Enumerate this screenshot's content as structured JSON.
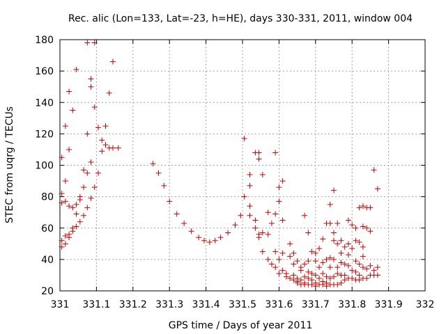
{
  "chart_data": {
    "type": "scatter",
    "title": "Rec. alic (Lon=133, Lat=-23, h=HE), days 330-331, 2011, window 004",
    "xlabel": "GPS time / Days of year 2011",
    "ylabel": "STEC from uqrg / TECUs",
    "xlim": [
      331,
      332
    ],
    "ylim": [
      20,
      180
    ],
    "xticks": [
      331,
      331.1,
      331.2,
      331.3,
      331.4,
      331.5,
      331.6,
      331.7,
      331.8,
      331.9,
      332
    ],
    "xtick_labels": [
      "331",
      "331.1",
      "331.2",
      "331.3",
      "331.4",
      "331.5",
      "331.6",
      "331.7",
      "331.8",
      "331.9",
      "332"
    ],
    "yticks": [
      20,
      40,
      60,
      80,
      100,
      120,
      140,
      160,
      180
    ],
    "ytick_labels": [
      "20",
      "40",
      "60",
      "80",
      "100",
      "120",
      "140",
      "160",
      "180"
    ],
    "grid": true,
    "marker": "plus",
    "color": "#cc0000",
    "points": [
      [
        331.005,
        76
      ],
      [
        331.005,
        82
      ],
      [
        331.005,
        105
      ],
      [
        331.005,
        52
      ],
      [
        331.005,
        48
      ],
      [
        331.015,
        125
      ],
      [
        331.015,
        90
      ],
      [
        331.015,
        77
      ],
      [
        331.015,
        50
      ],
      [
        331.015,
        55
      ],
      [
        331.025,
        147
      ],
      [
        331.025,
        110
      ],
      [
        331.025,
        74
      ],
      [
        331.025,
        56
      ],
      [
        331.025,
        54
      ],
      [
        331.035,
        135
      ],
      [
        331.035,
        73
      ],
      [
        331.035,
        60
      ],
      [
        331.035,
        58
      ],
      [
        331.045,
        161
      ],
      [
        331.045,
        75
      ],
      [
        331.045,
        69
      ],
      [
        331.045,
        61
      ],
      [
        331.055,
        80
      ],
      [
        331.055,
        78
      ],
      [
        331.055,
        64
      ],
      [
        331.065,
        97
      ],
      [
        331.065,
        86
      ],
      [
        331.065,
        68
      ],
      [
        331.075,
        178
      ],
      [
        331.075,
        120
      ],
      [
        331.075,
        95
      ],
      [
        331.075,
        73
      ],
      [
        331.085,
        155
      ],
      [
        331.085,
        150
      ],
      [
        331.085,
        102
      ],
      [
        331.085,
        79
      ],
      [
        331.095,
        178
      ],
      [
        331.095,
        137
      ],
      [
        331.095,
        86
      ],
      [
        331.105,
        124
      ],
      [
        331.105,
        95
      ],
      [
        331.115,
        116
      ],
      [
        331.115,
        109
      ],
      [
        331.125,
        125
      ],
      [
        331.125,
        113
      ],
      [
        331.135,
        146
      ],
      [
        331.135,
        111
      ],
      [
        331.145,
        166
      ],
      [
        331.145,
        111
      ],
      [
        331.16,
        111
      ],
      [
        331.255,
        101
      ],
      [
        331.27,
        95
      ],
      [
        331.285,
        87
      ],
      [
        331.3,
        77
      ],
      [
        331.32,
        69
      ],
      [
        331.34,
        63
      ],
      [
        331.36,
        58
      ],
      [
        331.38,
        54
      ],
      [
        331.395,
        52
      ],
      [
        331.41,
        51
      ],
      [
        331.425,
        52
      ],
      [
        331.44,
        54
      ],
      [
        331.46,
        57
      ],
      [
        331.48,
        62
      ],
      [
        331.495,
        68
      ],
      [
        331.505,
        117
      ],
      [
        331.505,
        80
      ],
      [
        331.52,
        94
      ],
      [
        331.52,
        87
      ],
      [
        331.52,
        74
      ],
      [
        331.52,
        68
      ],
      [
        331.535,
        108
      ],
      [
        331.535,
        65
      ],
      [
        331.535,
        60
      ],
      [
        331.545,
        108
      ],
      [
        331.545,
        104
      ],
      [
        331.545,
        56
      ],
      [
        331.545,
        54
      ],
      [
        331.555,
        94
      ],
      [
        331.555,
        57
      ],
      [
        331.555,
        45
      ],
      [
        331.57,
        70
      ],
      [
        331.57,
        56
      ],
      [
        331.57,
        40
      ],
      [
        331.58,
        63
      ],
      [
        331.58,
        37
      ],
      [
        331.59,
        108
      ],
      [
        331.59,
        69
      ],
      [
        331.59,
        45
      ],
      [
        331.59,
        35
      ],
      [
        331.6,
        86
      ],
      [
        331.6,
        77
      ],
      [
        331.6,
        40
      ],
      [
        331.6,
        31
      ],
      [
        331.61,
        90
      ],
      [
        331.61,
        65
      ],
      [
        331.61,
        44
      ],
      [
        331.61,
        33
      ],
      [
        331.62,
        31
      ],
      [
        331.62,
        29
      ],
      [
        331.63,
        50
      ],
      [
        331.63,
        42
      ],
      [
        331.63,
        28
      ],
      [
        331.64,
        44
      ],
      [
        331.64,
        37
      ],
      [
        331.64,
        30
      ],
      [
        331.64,
        27
      ],
      [
        331.65,
        39
      ],
      [
        331.65,
        28
      ],
      [
        331.65,
        26
      ],
      [
        331.65,
        25
      ],
      [
        331.66,
        35
      ],
      [
        331.66,
        33
      ],
      [
        331.66,
        27
      ],
      [
        331.66,
        24
      ],
      [
        331.67,
        68
      ],
      [
        331.67,
        37
      ],
      [
        331.67,
        29
      ],
      [
        331.67,
        25
      ],
      [
        331.67,
        24
      ],
      [
        331.68,
        57
      ],
      [
        331.68,
        39
      ],
      [
        331.68,
        32
      ],
      [
        331.68,
        28
      ],
      [
        331.68,
        24
      ],
      [
        331.69,
        45
      ],
      [
        331.69,
        31
      ],
      [
        331.69,
        27
      ],
      [
        331.69,
        24
      ],
      [
        331.7,
        44
      ],
      [
        331.7,
        39
      ],
      [
        331.7,
        30
      ],
      [
        331.7,
        25
      ],
      [
        331.7,
        23
      ],
      [
        331.71,
        47
      ],
      [
        331.71,
        35
      ],
      [
        331.71,
        28
      ],
      [
        331.71,
        24
      ],
      [
        331.72,
        53
      ],
      [
        331.72,
        38
      ],
      [
        331.72,
        31
      ],
      [
        331.72,
        26
      ],
      [
        331.72,
        24
      ],
      [
        331.73,
        63
      ],
      [
        331.73,
        40
      ],
      [
        331.73,
        29
      ],
      [
        331.73,
        25
      ],
      [
        331.73,
        23
      ],
      [
        331.74,
        75
      ],
      [
        331.74,
        63
      ],
      [
        331.74,
        41
      ],
      [
        331.74,
        35
      ],
      [
        331.74,
        28
      ],
      [
        331.74,
        24
      ],
      [
        331.75,
        84
      ],
      [
        331.75,
        57
      ],
      [
        331.75,
        52
      ],
      [
        331.75,
        40
      ],
      [
        331.75,
        29
      ],
      [
        331.75,
        24
      ],
      [
        331.76,
        63
      ],
      [
        331.76,
        50
      ],
      [
        331.76,
        35
      ],
      [
        331.76,
        31
      ],
      [
        331.76,
        24
      ],
      [
        331.77,
        52
      ],
      [
        331.77,
        44
      ],
      [
        331.77,
        38
      ],
      [
        331.77,
        30
      ],
      [
        331.77,
        25
      ],
      [
        331.78,
        48
      ],
      [
        331.78,
        37
      ],
      [
        331.78,
        30
      ],
      [
        331.78,
        27
      ],
      [
        331.79,
        65
      ],
      [
        331.79,
        50
      ],
      [
        331.79,
        43
      ],
      [
        331.79,
        36
      ],
      [
        331.79,
        28
      ],
      [
        331.8,
        62
      ],
      [
        331.8,
        47
      ],
      [
        331.8,
        33
      ],
      [
        331.8,
        28
      ],
      [
        331.81,
        60
      ],
      [
        331.81,
        52
      ],
      [
        331.81,
        39
      ],
      [
        331.81,
        32
      ],
      [
        331.81,
        27
      ],
      [
        331.82,
        73
      ],
      [
        331.82,
        51
      ],
      [
        331.82,
        37
      ],
      [
        331.82,
        30
      ],
      [
        331.82,
        27
      ],
      [
        331.83,
        74
      ],
      [
        331.83,
        61
      ],
      [
        331.83,
        48
      ],
      [
        331.83,
        42
      ],
      [
        331.83,
        35
      ],
      [
        331.83,
        28
      ],
      [
        331.84,
        73
      ],
      [
        331.84,
        60
      ],
      [
        331.84,
        34
      ],
      [
        331.84,
        28
      ],
      [
        331.85,
        73
      ],
      [
        331.85,
        58
      ],
      [
        331.85,
        36
      ],
      [
        331.85,
        30
      ],
      [
        331.86,
        97
      ],
      [
        331.86,
        33
      ],
      [
        331.86,
        30
      ],
      [
        331.87,
        85
      ],
      [
        331.87,
        35
      ],
      [
        331.87,
        30
      ]
    ]
  }
}
